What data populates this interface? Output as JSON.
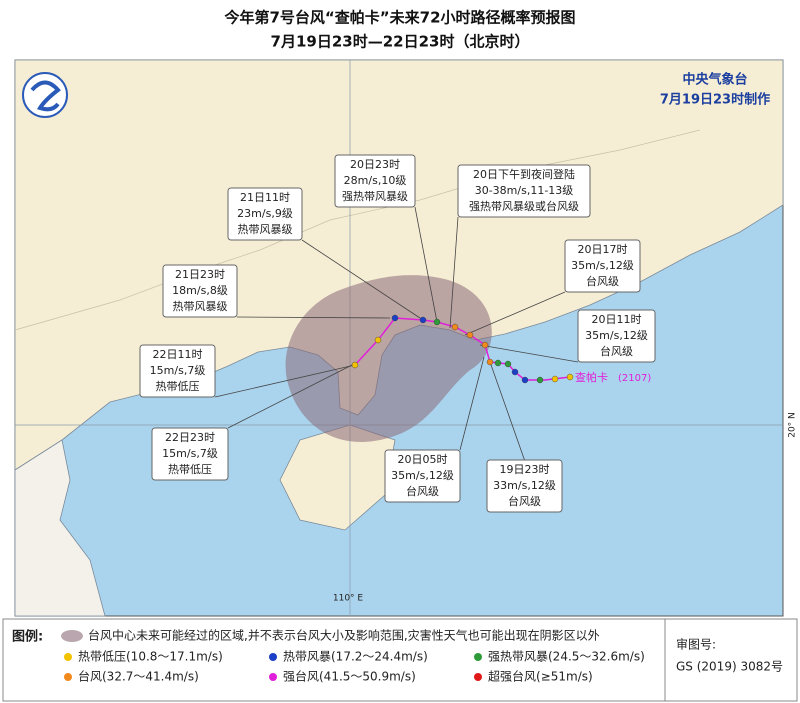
{
  "header": {
    "title": "今年第7号台风“查帕卡”未来72小时路径概率预报图",
    "subtitle": "7月19日23时—22日23时（北京时）"
  },
  "agency": {
    "name": "中央气象台",
    "issued": "7月19日23时制作"
  },
  "callouts": [
    [
      "20日23时",
      "28m/s,10级",
      "强热带风暴级"
    ],
    [
      "20日下午到夜间登陆",
      "30-38m/s,11-13级",
      "强热带风暴级或台风级"
    ],
    [
      "21日11时",
      "23m/s,9级",
      "热带风暴级"
    ],
    [
      "20日17时",
      "35m/s,12级",
      "台风级"
    ],
    [
      "21日23时",
      "18m/s,8级",
      "热带风暴级"
    ],
    [
      "20日11时",
      "35m/s,12级",
      "台风级"
    ],
    [
      "22日11时",
      "15m/s,7级",
      "热带低压"
    ],
    [
      "22日23时",
      "15m/s,7级",
      "热带低压"
    ],
    [
      "20日05时",
      "35m/s,12级",
      "台风级"
    ],
    [
      "19日23时",
      "33m/s,12级",
      "台风级"
    ]
  ],
  "typhoon": {
    "name": "查帕卡",
    "code": "(2107)"
  },
  "grid": {
    "lon": "110° E",
    "lat": "20° N"
  },
  "legend": {
    "title": "图例:",
    "shade": "台风中心未来可能经过的区域,并不表示台风大小及影响范围,灾害性天气也可能出现在阴影区以外",
    "items": [
      {
        "label": "热带低压(10.8～17.1m/s)",
        "color": "#f2c200"
      },
      {
        "label": "热带风暴(17.2～24.4m/s)",
        "color": "#1c3fc8"
      },
      {
        "label": "强热带风暴(24.5～32.6m/s)",
        "color": "#2e9a3a"
      },
      {
        "label": "台风(32.7～41.4m/s)",
        "color": "#f08a1c"
      },
      {
        "label": "强台风(41.5～50.9m/s)",
        "color": "#e020d8"
      },
      {
        "label": "超强台风(≥51m/s)",
        "color": "#e01818"
      }
    ]
  },
  "approval": {
    "label": "审图号:",
    "number": "GS (2019) 3082号"
  }
}
